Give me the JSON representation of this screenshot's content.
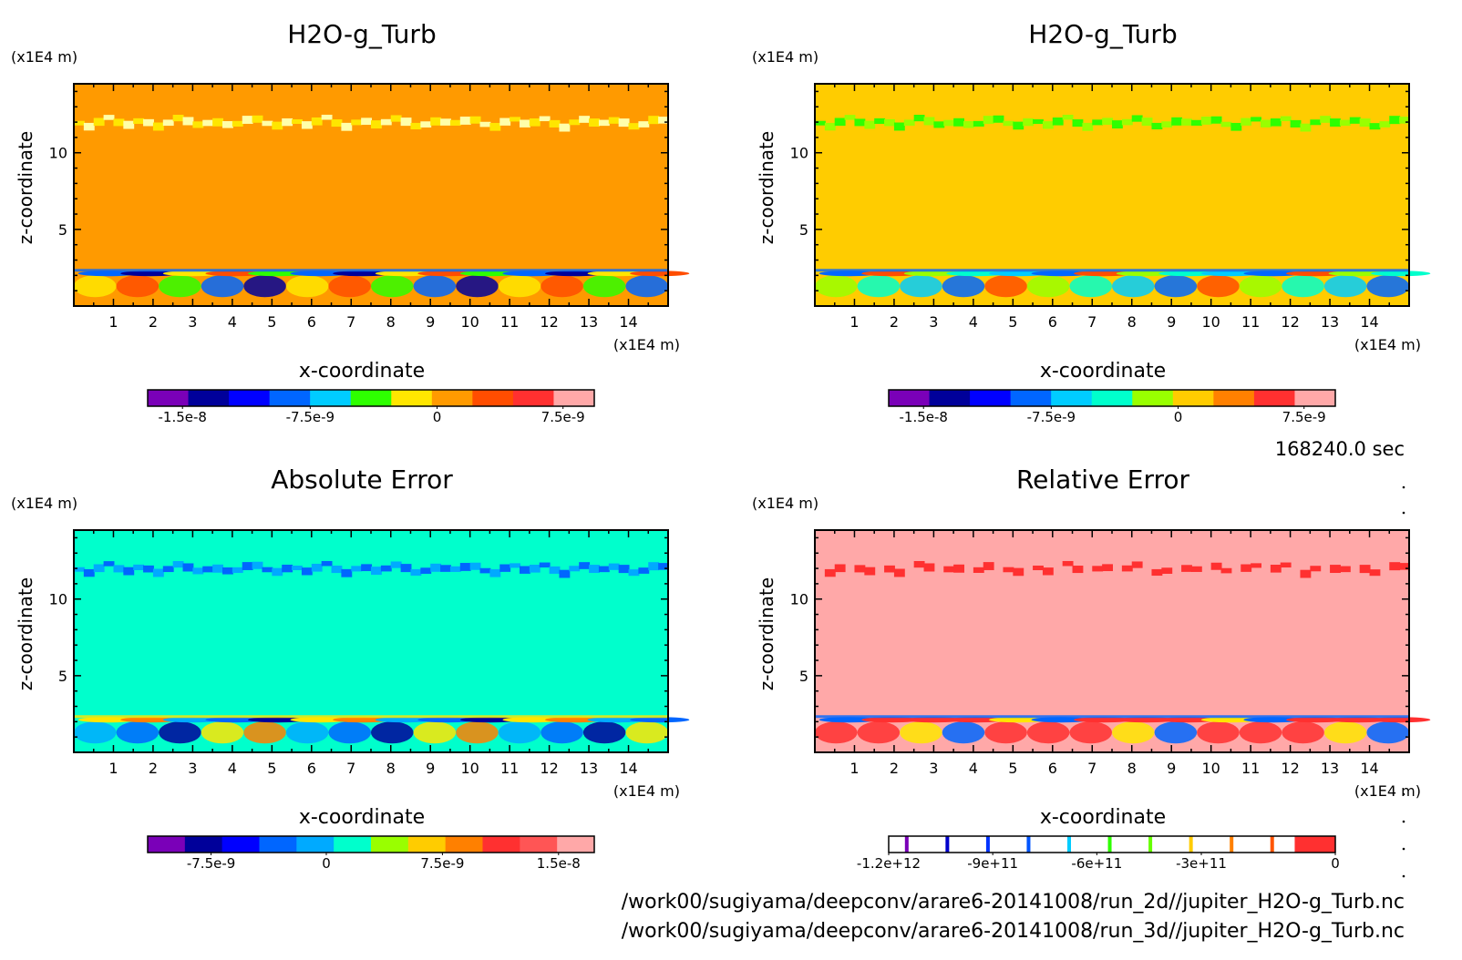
{
  "time_label": "168240.0 sec",
  "file_paths": [
    "/work00/sugiyama/deepconv/arare6-20141008/run_2d//jupiter_H2O-g_Turb.nc",
    "/work00/sugiyama/deepconv/arare6-20141008/run_3d//jupiter_H2O-g_Turb.nc"
  ],
  "chart_data": [
    {
      "type": "heatmap",
      "title": "H2O-g_Turb",
      "xlabel": "x-coordinate",
      "ylabel": "z-coordinate",
      "x_unit": "(x1E4 m)",
      "y_unit": "(x1E4 m)",
      "xlim": [
        0,
        15
      ],
      "ylim": [
        0,
        14.5
      ],
      "x_ticks": [
        1,
        2,
        3,
        4,
        5,
        6,
        7,
        8,
        9,
        10,
        11,
        12,
        13,
        14
      ],
      "y_ticks": [
        5,
        10
      ],
      "background_color": "#ff9a00",
      "colorbar": {
        "colors": [
          "#7a00b8",
          "#00009a",
          "#0000ff",
          "#0066ff",
          "#00ccff",
          "#2eff00",
          "#ffe600",
          "#ff9a00",
          "#ff4d00",
          "#ff3030",
          "#ffa8a8"
        ],
        "tick_labels": [
          "-1.5e-8",
          "-7.5e-9",
          "0",
          "7.5e-9"
        ]
      }
    },
    {
      "type": "heatmap",
      "title": "H2O-g_Turb",
      "xlabel": "x-coordinate",
      "ylabel": "z-coordinate",
      "x_unit": "(x1E4 m)",
      "y_unit": "(x1E4 m)",
      "xlim": [
        0,
        15
      ],
      "ylim": [
        0,
        14.5
      ],
      "x_ticks": [
        1,
        2,
        3,
        4,
        5,
        6,
        7,
        8,
        9,
        10,
        11,
        12,
        13,
        14
      ],
      "y_ticks": [
        5,
        10
      ],
      "background_color": "#ffcc00",
      "colorbar": {
        "colors": [
          "#7a00b8",
          "#00009a",
          "#0000ff",
          "#0066ff",
          "#00ccff",
          "#00ffcc",
          "#99ff00",
          "#ffcc00",
          "#ff8000",
          "#ff3030",
          "#ffa8a8"
        ],
        "tick_labels": [
          "-1.5e-8",
          "-7.5e-9",
          "0",
          "7.5e-9"
        ]
      }
    },
    {
      "type": "heatmap",
      "title": "Absolute Error",
      "xlabel": "x-coordinate",
      "ylabel": "z-coordinate",
      "x_unit": "(x1E4 m)",
      "y_unit": "(x1E4 m)",
      "xlim": [
        0,
        15
      ],
      "ylim": [
        0,
        14.5
      ],
      "x_ticks": [
        1,
        2,
        3,
        4,
        5,
        6,
        7,
        8,
        9,
        10,
        11,
        12,
        13,
        14
      ],
      "y_ticks": [
        5,
        10
      ],
      "background_color": "#00ffcc",
      "colorbar": {
        "colors": [
          "#7a00b8",
          "#00009a",
          "#0000ff",
          "#0066ff",
          "#00aaff",
          "#00ffcc",
          "#99ff00",
          "#ffcc00",
          "#ff8000",
          "#ff3030",
          "#ff5555",
          "#ffa8a8"
        ],
        "tick_labels": [
          "-7.5e-9",
          "0",
          "7.5e-9",
          "1.5e-8"
        ]
      }
    },
    {
      "type": "heatmap",
      "title": "Relative Error",
      "xlabel": "x-coordinate",
      "ylabel": "z-coordinate",
      "x_unit": "(x1E4 m)",
      "y_unit": "(x1E4 m)",
      "xlim": [
        0,
        15
      ],
      "ylim": [
        0,
        14.5
      ],
      "x_ticks": [
        1,
        2,
        3,
        4,
        5,
        6,
        7,
        8,
        9,
        10,
        11,
        12,
        13,
        14
      ],
      "y_ticks": [
        5,
        10
      ],
      "background_color": "#ffa8a8",
      "colorbar": {
        "colors": [
          "#ffffff",
          "#ffffff",
          "#ffffff",
          "#ffffff",
          "#ffffff",
          "#ffffff",
          "#ffffff",
          "#ffffff",
          "#ffffff",
          "#ffffff",
          "#ff3030"
        ],
        "line_colors": [
          "#7a00b8",
          "#0000cc",
          "#0033ff",
          "#0055ff",
          "#00ccff",
          "#2eff00",
          "#66ff00",
          "#ffcc00",
          "#ff8000",
          "#ff5500"
        ],
        "tick_labels": [
          "-1.2e+12",
          "-9e+11",
          "-6e+11",
          "-3e+11",
          "0"
        ]
      }
    }
  ]
}
